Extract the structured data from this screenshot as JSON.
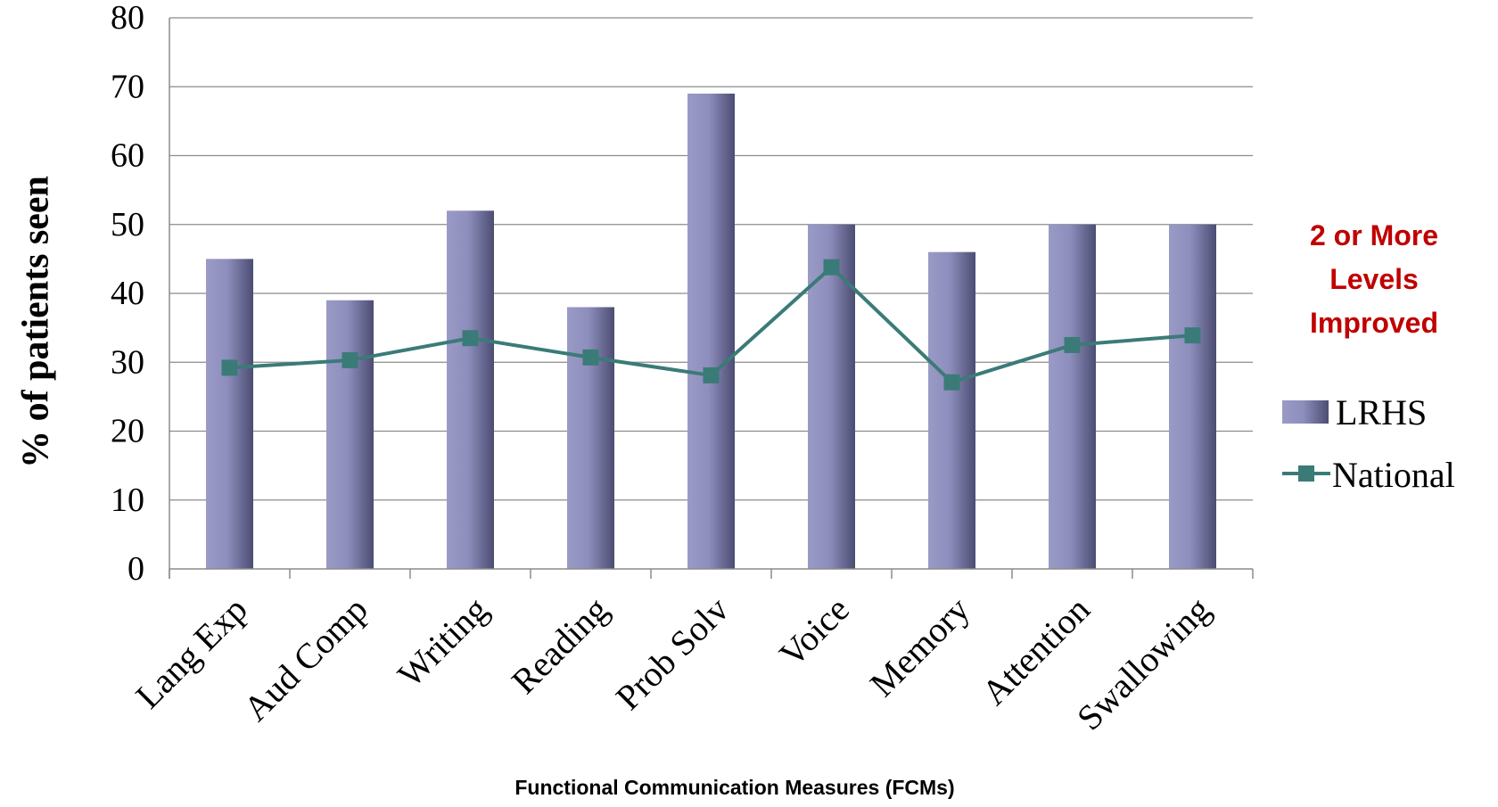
{
  "chart_data": {
    "type": "bar",
    "title": "",
    "annotation": [
      "2 or More",
      "Levels",
      "Improved"
    ],
    "xlabel": "Functional Communication Measures (FCMs)",
    "ylabel": "% of patients seen",
    "ylim": [
      0,
      80
    ],
    "yticks": [
      "0",
      "10",
      "20",
      "30",
      "40",
      "50",
      "60",
      "70",
      "80"
    ],
    "categories": [
      "Lang Exp",
      "Aud Comp",
      "Writing",
      "Reading",
      "Prob Solv",
      "Voice",
      "Memory",
      "Attention",
      "Swallowing"
    ],
    "series": [
      {
        "name": "LRHS",
        "kind": "bar",
        "values": [
          45,
          39,
          52,
          38,
          69,
          50,
          46,
          50,
          50
        ]
      },
      {
        "name": "National",
        "kind": "line",
        "values": [
          29.2,
          30.3,
          33.5,
          30.7,
          28.1,
          43.8,
          27.1,
          32.5,
          33.9
        ]
      }
    ],
    "grid": true,
    "legend_position": "right",
    "colors": {
      "bar_light": "#9a9ac6",
      "bar_dark": "#4c4d72",
      "line": "#3a7b78",
      "annotation": "#c00000",
      "grid": "#8c8c8c"
    }
  }
}
